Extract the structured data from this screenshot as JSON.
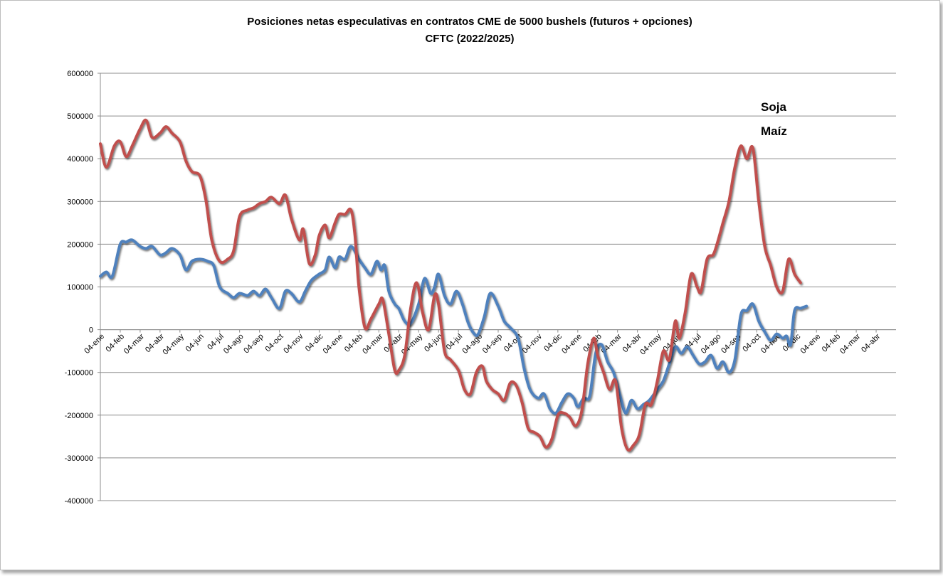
{
  "chart_data": {
    "type": "line",
    "title": "Posiciones netas especulativas en contratos CME de 5000 bushels (futuros + opciones)",
    "subtitle": "CFTC (2022/2025)",
    "ylim": [
      -400000,
      600000
    ],
    "yticks": [
      600000,
      500000,
      400000,
      300000,
      200000,
      100000,
      0,
      -100000,
      -200000,
      -300000,
      -400000
    ],
    "grid": true,
    "legend_position": "top-right",
    "x_labels": [
      "04-ene",
      "04-feb",
      "04-mar",
      "04-abr",
      "04-may",
      "04-jun",
      "04-jul",
      "04-ago",
      "04-sep",
      "04-oct",
      "04-nov",
      "04-dic",
      "04-ene",
      "04-feb",
      "04-mar",
      "04-abr",
      "04-may",
      "04-jun",
      "04-jul",
      "04-ago",
      "04-sep",
      "04-oct",
      "04-nov",
      "04-dic",
      "04-ene",
      "04-feb",
      "04-mar",
      "04-abr",
      "04-may",
      "04-jun",
      "04-jul",
      "04-ago",
      "04-sep",
      "04-oct",
      "04-nov",
      "04-dic",
      "04-ene",
      "04-feb",
      "04-mar",
      "04-abr"
    ],
    "series": [
      {
        "name": "Soja",
        "color": "#4f81bd",
        "points": [
          [
            0,
            125000
          ],
          [
            0.3,
            135000
          ],
          [
            0.6,
            125000
          ],
          [
            1,
            200000
          ],
          [
            1.3,
            205000
          ],
          [
            1.6,
            210000
          ],
          [
            2,
            195000
          ],
          [
            2.3,
            190000
          ],
          [
            2.6,
            195000
          ],
          [
            3,
            175000
          ],
          [
            3.3,
            180000
          ],
          [
            3.6,
            190000
          ],
          [
            4,
            175000
          ],
          [
            4.3,
            140000
          ],
          [
            4.6,
            160000
          ],
          [
            5,
            165000
          ],
          [
            5.4,
            160000
          ],
          [
            5.7,
            150000
          ],
          [
            6,
            100000
          ],
          [
            6.4,
            85000
          ],
          [
            6.7,
            75000
          ],
          [
            7,
            85000
          ],
          [
            7.4,
            80000
          ],
          [
            7.7,
            90000
          ],
          [
            8,
            80000
          ],
          [
            8.3,
            95000
          ],
          [
            8.6,
            75000
          ],
          [
            9,
            50000
          ],
          [
            9.3,
            90000
          ],
          [
            9.6,
            85000
          ],
          [
            10,
            65000
          ],
          [
            10.3,
            90000
          ],
          [
            10.6,
            115000
          ],
          [
            11,
            130000
          ],
          [
            11.3,
            140000
          ],
          [
            11.5,
            170000
          ],
          [
            11.8,
            145000
          ],
          [
            12,
            170000
          ],
          [
            12.3,
            165000
          ],
          [
            12.6,
            195000
          ],
          [
            13,
            165000
          ],
          [
            13.3,
            145000
          ],
          [
            13.6,
            130000
          ],
          [
            13.9,
            160000
          ],
          [
            14.1,
            140000
          ],
          [
            14.3,
            150000
          ],
          [
            14.5,
            90000
          ],
          [
            14.8,
            60000
          ],
          [
            15,
            50000
          ],
          [
            15.3,
            20000
          ],
          [
            15.6,
            15000
          ],
          [
            16,
            60000
          ],
          [
            16.3,
            120000
          ],
          [
            16.6,
            85000
          ],
          [
            16.8,
            100000
          ],
          [
            17,
            130000
          ],
          [
            17.3,
            80000
          ],
          [
            17.6,
            60000
          ],
          [
            17.9,
            90000
          ],
          [
            18.2,
            60000
          ],
          [
            18.5,
            15000
          ],
          [
            18.8,
            -10000
          ],
          [
            19,
            -10000
          ],
          [
            19.3,
            30000
          ],
          [
            19.6,
            85000
          ],
          [
            20,
            55000
          ],
          [
            20.3,
            20000
          ],
          [
            20.6,
            5000
          ],
          [
            21,
            -20000
          ],
          [
            21.3,
            -90000
          ],
          [
            21.6,
            -140000
          ],
          [
            22,
            -160000
          ],
          [
            22.3,
            -150000
          ],
          [
            22.6,
            -185000
          ],
          [
            22.9,
            -195000
          ],
          [
            23.2,
            -170000
          ],
          [
            23.5,
            -150000
          ],
          [
            23.8,
            -160000
          ],
          [
            24,
            -180000
          ],
          [
            24.3,
            -160000
          ],
          [
            24.6,
            -155000
          ],
          [
            24.9,
            -55000
          ],
          [
            25.2,
            -35000
          ],
          [
            25.5,
            -75000
          ],
          [
            25.8,
            -100000
          ],
          [
            26.1,
            -150000
          ],
          [
            26.4,
            -195000
          ],
          [
            26.7,
            -165000
          ],
          [
            27,
            -185000
          ],
          [
            27.3,
            -175000
          ],
          [
            27.6,
            -165000
          ],
          [
            28,
            -140000
          ],
          [
            28.3,
            -120000
          ],
          [
            28.6,
            -80000
          ],
          [
            28.9,
            -40000
          ],
          [
            29.2,
            -55000
          ],
          [
            29.5,
            -40000
          ],
          [
            29.8,
            -60000
          ],
          [
            30.1,
            -80000
          ],
          [
            30.4,
            -75000
          ],
          [
            30.7,
            -60000
          ],
          [
            31,
            -90000
          ],
          [
            31.3,
            -75000
          ],
          [
            31.6,
            -100000
          ],
          [
            31.9,
            -70000
          ],
          [
            32.2,
            35000
          ],
          [
            32.5,
            45000
          ],
          [
            32.8,
            60000
          ],
          [
            33.1,
            20000
          ],
          [
            33.4,
            -5000
          ],
          [
            33.7,
            -25000
          ],
          [
            34,
            -10000
          ],
          [
            34.3,
            -20000
          ],
          [
            34.5,
            -15000
          ],
          [
            34.7,
            -35000
          ],
          [
            34.9,
            45000
          ],
          [
            35.2,
            50000
          ],
          [
            35.5,
            55000
          ]
        ]
      },
      {
        "name": "Maíz",
        "color": "#c0504d",
        "points": [
          [
            0,
            435000
          ],
          [
            0.3,
            380000
          ],
          [
            0.7,
            430000
          ],
          [
            1,
            440000
          ],
          [
            1.3,
            405000
          ],
          [
            1.6,
            430000
          ],
          [
            2,
            470000
          ],
          [
            2.3,
            490000
          ],
          [
            2.6,
            450000
          ],
          [
            3,
            460000
          ],
          [
            3.3,
            475000
          ],
          [
            3.6,
            460000
          ],
          [
            4,
            440000
          ],
          [
            4.3,
            395000
          ],
          [
            4.6,
            370000
          ],
          [
            5,
            360000
          ],
          [
            5.3,
            305000
          ],
          [
            5.6,
            210000
          ],
          [
            6,
            160000
          ],
          [
            6.4,
            165000
          ],
          [
            6.7,
            185000
          ],
          [
            7,
            265000
          ],
          [
            7.4,
            280000
          ],
          [
            7.7,
            285000
          ],
          [
            8,
            295000
          ],
          [
            8.3,
            300000
          ],
          [
            8.6,
            310000
          ],
          [
            9,
            295000
          ],
          [
            9.3,
            315000
          ],
          [
            9.6,
            260000
          ],
          [
            10,
            210000
          ],
          [
            10.2,
            235000
          ],
          [
            10.5,
            155000
          ],
          [
            10.8,
            175000
          ],
          [
            11,
            220000
          ],
          [
            11.3,
            245000
          ],
          [
            11.5,
            215000
          ],
          [
            11.8,
            250000
          ],
          [
            12,
            270000
          ],
          [
            12.3,
            270000
          ],
          [
            12.6,
            280000
          ],
          [
            12.8,
            220000
          ],
          [
            13,
            100000
          ],
          [
            13.3,
            5000
          ],
          [
            13.6,
            25000
          ],
          [
            14,
            60000
          ],
          [
            14.2,
            70000
          ],
          [
            14.5,
            -10000
          ],
          [
            14.8,
            -95000
          ],
          [
            15,
            -95000
          ],
          [
            15.3,
            -60000
          ],
          [
            15.6,
            50000
          ],
          [
            15.9,
            110000
          ],
          [
            16.2,
            40000
          ],
          [
            16.5,
            0
          ],
          [
            16.8,
            80000
          ],
          [
            17,
            60000
          ],
          [
            17.3,
            -50000
          ],
          [
            17.6,
            -70000
          ],
          [
            18,
            -95000
          ],
          [
            18.3,
            -140000
          ],
          [
            18.6,
            -150000
          ],
          [
            18.9,
            -100000
          ],
          [
            19.2,
            -85000
          ],
          [
            19.4,
            -120000
          ],
          [
            19.7,
            -140000
          ],
          [
            20,
            -150000
          ],
          [
            20.3,
            -165000
          ],
          [
            20.6,
            -125000
          ],
          [
            20.9,
            -130000
          ],
          [
            21.2,
            -170000
          ],
          [
            21.5,
            -230000
          ],
          [
            21.8,
            -240000
          ],
          [
            22.1,
            -250000
          ],
          [
            22.4,
            -275000
          ],
          [
            22.7,
            -255000
          ],
          [
            23,
            -200000
          ],
          [
            23.3,
            -195000
          ],
          [
            23.6,
            -205000
          ],
          [
            23.9,
            -225000
          ],
          [
            24.2,
            -190000
          ],
          [
            24.5,
            -80000
          ],
          [
            24.8,
            -20000
          ],
          [
            25,
            -60000
          ],
          [
            25.3,
            -100000
          ],
          [
            25.6,
            -140000
          ],
          [
            25.9,
            -120000
          ],
          [
            26.2,
            -230000
          ],
          [
            26.5,
            -280000
          ],
          [
            26.8,
            -270000
          ],
          [
            27.1,
            -245000
          ],
          [
            27.4,
            -175000
          ],
          [
            27.7,
            -175000
          ],
          [
            28,
            -120000
          ],
          [
            28.3,
            -50000
          ],
          [
            28.6,
            -70000
          ],
          [
            28.9,
            20000
          ],
          [
            29.1,
            -20000
          ],
          [
            29.4,
            40000
          ],
          [
            29.7,
            130000
          ],
          [
            30,
            100000
          ],
          [
            30.2,
            90000
          ],
          [
            30.5,
            165000
          ],
          [
            30.8,
            175000
          ],
          [
            31,
            200000
          ],
          [
            31.3,
            250000
          ],
          [
            31.6,
            300000
          ],
          [
            31.9,
            380000
          ],
          [
            32.2,
            430000
          ],
          [
            32.5,
            400000
          ],
          [
            32.8,
            425000
          ],
          [
            33.1,
            300000
          ],
          [
            33.4,
            195000
          ],
          [
            33.7,
            150000
          ],
          [
            34,
            100000
          ],
          [
            34.3,
            90000
          ],
          [
            34.6,
            165000
          ],
          [
            34.9,
            130000
          ],
          [
            35.2,
            110000
          ]
        ]
      }
    ]
  }
}
